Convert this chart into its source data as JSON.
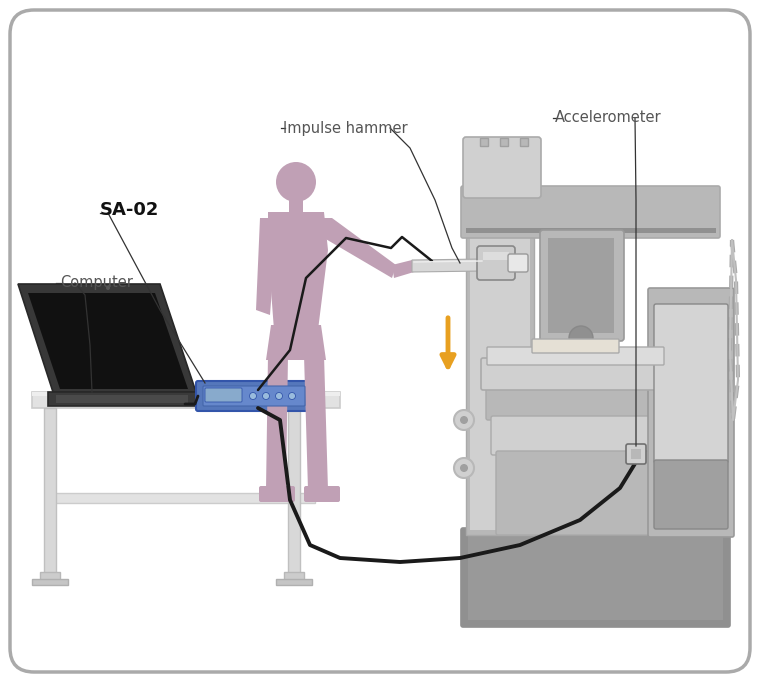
{
  "background_color": "#ffffff",
  "border_color": "#aaaaaa",
  "labels": {
    "sa02": "SA-02",
    "computer": "Computer",
    "impulse_hammer": "Impulse hammer",
    "accelerometer": "Accelerometer"
  },
  "colors": {
    "background": "#f5f5f5",
    "border": "#aaaaaa",
    "white_fill": "#ffffff",
    "desk_top": "#e2e2e2",
    "desk_edge": "#cccccc",
    "desk_legs": "#d0d0d0",
    "laptop_body": "#3a3a3a",
    "laptop_screen_bg": "#252525",
    "laptop_screen_inner": "#111111",
    "device_body": "#6688bb",
    "device_panel": "#7799cc",
    "device_led": "#99bbdd",
    "person_fill": "#c0a0b5",
    "machine_light": "#d0d0d0",
    "machine_mid": "#b8b8b8",
    "machine_dark": "#a0a0a0",
    "machine_darker": "#909090",
    "cable_color": "#1a1a1a",
    "arrow_color": "#e8a020",
    "label_line": "#333333",
    "label_text": "#555555",
    "sa02_text": "#111111"
  },
  "figure_width": 7.6,
  "figure_height": 6.82,
  "dpi": 100
}
